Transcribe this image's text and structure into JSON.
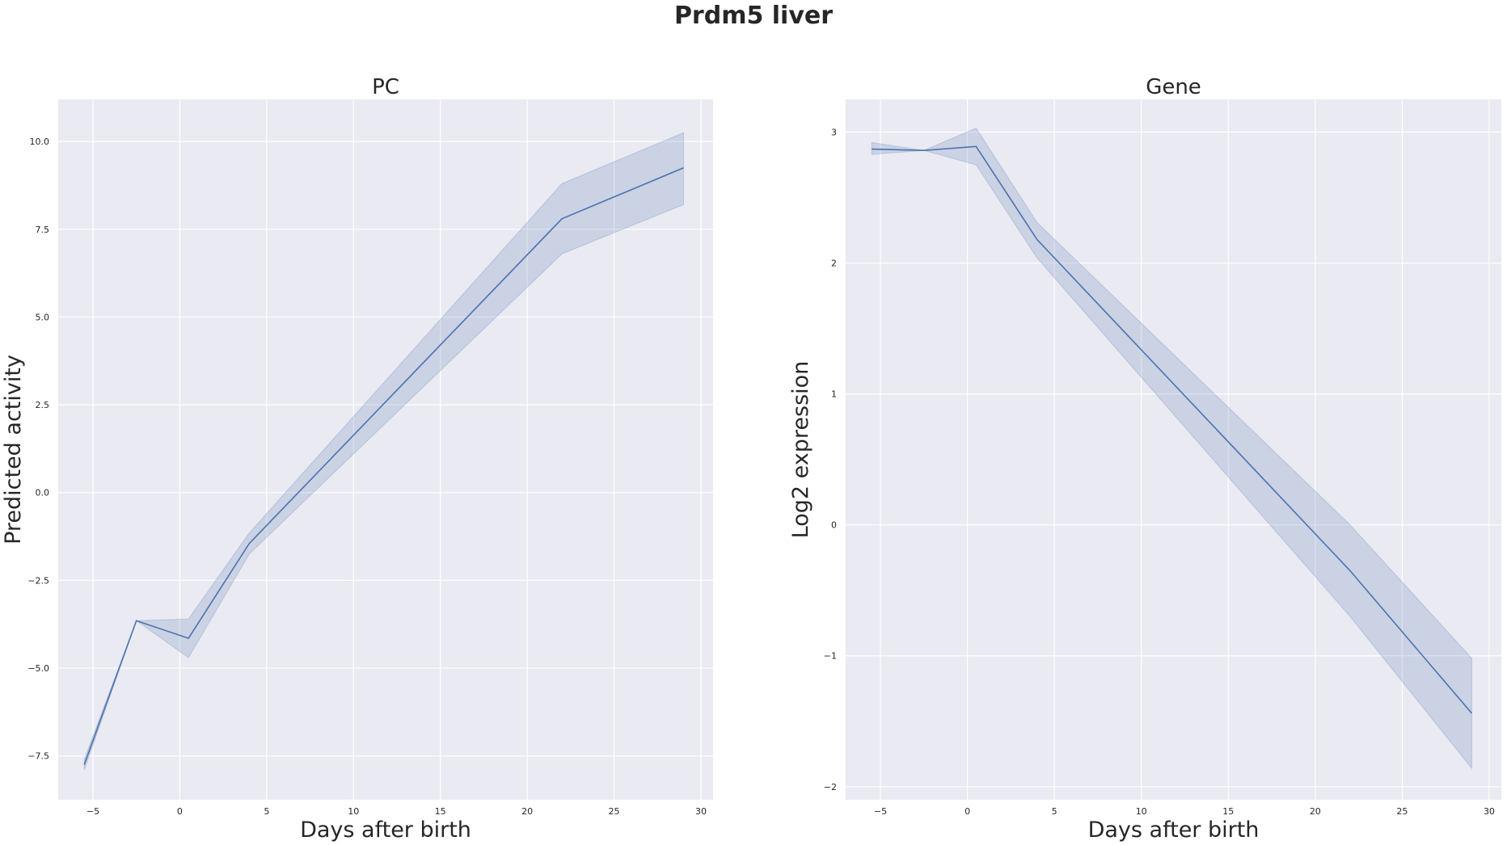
{
  "figure": {
    "title": "Prdm5 liver"
  },
  "chart_data": [
    {
      "type": "line",
      "title": "PC",
      "xlabel": "Days after birth",
      "ylabel": "Predicted activity",
      "xlim": [
        -7,
        30.7
      ],
      "ylim": [
        -8.75,
        11.2
      ],
      "xticks": [
        -5,
        0,
        5,
        10,
        15,
        20,
        25,
        30
      ],
      "xtick_labels": [
        "−5",
        "0",
        "5",
        "10",
        "15",
        "20",
        "25",
        "30"
      ],
      "yticks": [
        -7.5,
        -5.0,
        -2.5,
        0.0,
        2.5,
        5.0,
        7.5,
        10.0
      ],
      "ytick_labels": [
        "−7.5",
        "−5.0",
        "−2.5",
        "0.0",
        "2.5",
        "5.0",
        "7.5",
        "10.0"
      ],
      "grid": true,
      "series": [
        {
          "x": [
            -5.5,
            -2.5,
            0.5,
            4,
            22,
            29
          ],
          "y": [
            -7.75,
            -3.65,
            -4.15,
            -1.45,
            7.8,
            9.25
          ],
          "y_lower": [
            -7.9,
            -3.65,
            -4.7,
            -1.75,
            6.8,
            8.2
          ],
          "y_upper": [
            -7.6,
            -3.65,
            -3.6,
            -1.15,
            8.8,
            10.25
          ]
        }
      ],
      "colors": {
        "line": "#4c72b0",
        "band": "#4c72b0",
        "band_opacity": 0.2,
        "background": "#eaeaf2",
        "grid": "#ffffff"
      }
    },
    {
      "type": "line",
      "title": "Gene",
      "xlabel": "Days after birth",
      "ylabel": "Log2 expression",
      "xlim": [
        -7,
        30.7
      ],
      "ylim": [
        -2.1,
        3.25
      ],
      "xticks": [
        -5,
        0,
        5,
        10,
        15,
        20,
        25,
        30
      ],
      "xtick_labels": [
        "−5",
        "0",
        "5",
        "10",
        "15",
        "20",
        "25",
        "30"
      ],
      "yticks": [
        -2,
        -1,
        0,
        1,
        2,
        3
      ],
      "ytick_labels": [
        "−2",
        "−1",
        "0",
        "1",
        "2",
        "3"
      ],
      "grid": true,
      "series": [
        {
          "x": [
            -5.5,
            -2.5,
            0.5,
            4,
            22,
            29
          ],
          "y": [
            2.87,
            2.86,
            2.89,
            2.18,
            -0.35,
            -1.44
          ],
          "y_lower": [
            2.83,
            2.86,
            2.75,
            2.04,
            -0.7,
            -1.86
          ],
          "y_upper": [
            2.92,
            2.86,
            3.03,
            2.31,
            0.0,
            -1.02
          ]
        }
      ],
      "colors": {
        "line": "#4c72b0",
        "band": "#4c72b0",
        "band_opacity": 0.2,
        "background": "#eaeaf2",
        "grid": "#ffffff"
      }
    }
  ]
}
